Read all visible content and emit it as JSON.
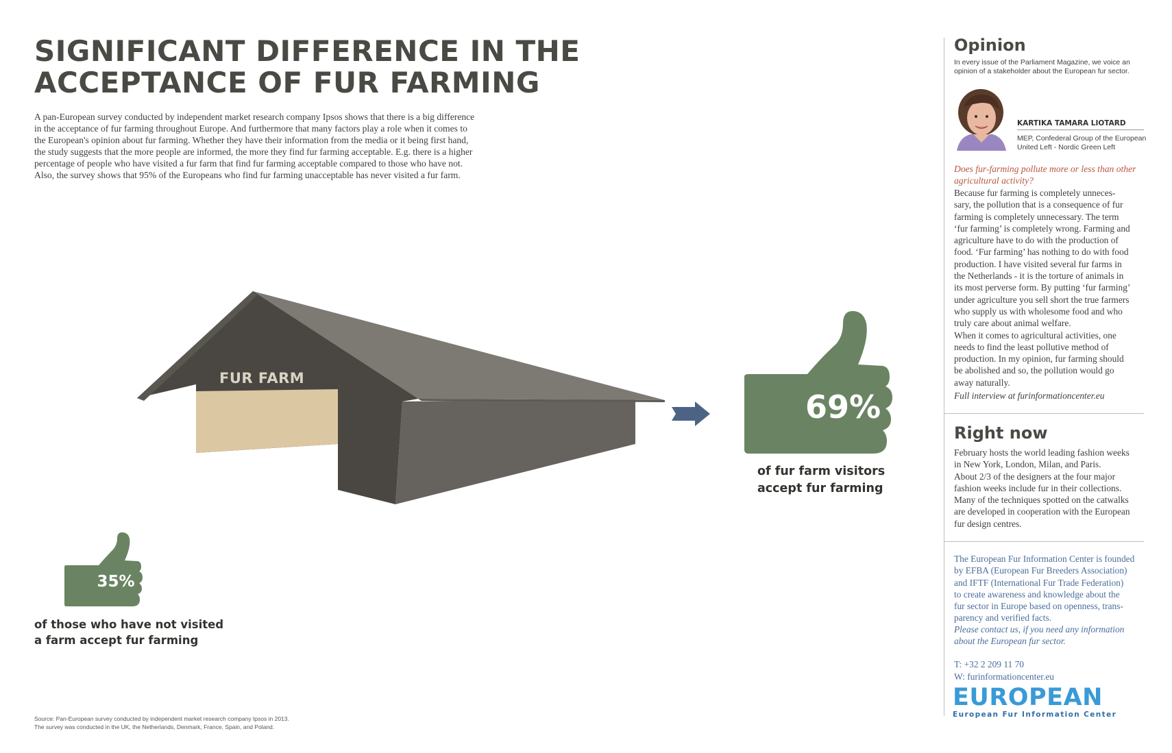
{
  "headline": {
    "line1": "SIGNIFICANT DIFFERENCE IN THE",
    "line2": "ACCEPTANCE OF FUR FARMING"
  },
  "intro": {
    "lines": [
      "A pan-European survey conducted by independent market research company Ipsos shows that there is a big difference",
      "in the acceptance of fur farming throughout Europe. And furthermore that many factors play a role when it comes to",
      "the European's opinion about fur farming. Whether they have their information from the media or it being first hand,",
      "the study suggests that the more people are informed, the more they find fur farming acceptable. E.g. there is a higher",
      "percentage of people who have visited a fur farm that find fur farming acceptable compared to those who have not.",
      "Also, the survey shows that 95% of the Europeans who find fur farming unacceptable has never visited a fur farm."
    ]
  },
  "barn": {
    "label": "FUR FARM"
  },
  "stat_visitors": {
    "percent_label": "69%",
    "value": 69,
    "caption": [
      "of fur farm visitors",
      "accept fur farming"
    ]
  },
  "stat_non_visitors": {
    "percent_label": "35%",
    "value": 35,
    "caption": [
      "of those who have not visited",
      "a farm accept fur farming"
    ]
  },
  "source": {
    "lines": [
      "Source: Pan-European survey conducted by independent market research company Ipsos in 2013.",
      "The survey was conducted in the UK, the Netherlands, Denmark, France, Spain, and Poland."
    ]
  },
  "opinion": {
    "title": "Opinion",
    "subtitle": [
      "In every issue of the Parliament Magazine, we voice an",
      "opinion of a stakeholder about the European fur sector."
    ],
    "person_name": "KARTIKA TAMARA LIOTARD",
    "person_role": [
      "MEP, Confederal Group of the European",
      "United Left - Nordic Green Left"
    ],
    "question": [
      "Does fur-farming pollute more or less than other",
      "agricultural activity?"
    ],
    "answer": [
      "Because fur farming is completely unneces-",
      "sary, the pollution that is a consequence of fur",
      "farming is completely unnecessary. The term",
      "‘fur farming’ is completely wrong. Farming and",
      "agriculture have to do with the production of",
      "food. ‘Fur farming’ has nothing to do with food",
      "production. I have visited several fur farms in",
      "the Netherlands - it is the torture of animals in",
      "its most perverse form. By putting ‘fur farming’",
      "under agriculture you sell short the true farmers",
      "who supply us with wholesome food and who",
      "truly care about animal welfare.",
      "When it comes to agricultural activities, one",
      "needs to find the least pollutive method of",
      "production. In my opinion, fur farming should",
      "be abolished and so, the pollution would go",
      "away naturally."
    ],
    "full_interview": "Full interview at furinformationcenter.eu"
  },
  "right_now": {
    "title": "Right now",
    "body": [
      "February hosts the world leading fashion weeks",
      "in New York, London, Milan, and Paris.",
      "About 2/3 of the designers at the four major",
      "fashion weeks include fur in their collections.",
      "Many of the techniques spotted on the catwalks",
      "are developed in cooperation with the European",
      "fur design centres."
    ]
  },
  "about": {
    "body": [
      "The European Fur Information Center is founded",
      "by EFBA (European Fur Breeders Association)",
      "and IFTF (International Fur Trade Federation)",
      "to create awareness and knowledge about the",
      "fur sector in Europe based on openness, trans-",
      "parency and verified facts."
    ],
    "contact_ask": [
      "Please contact us, if you need any information",
      "about the European fur sector."
    ],
    "phone": "T:   +32 2 209 11 70",
    "web": "W:  furinformationcenter.eu"
  },
  "logo": {
    "wordmark": "EUROPEAN",
    "tagline": "European Fur Information Center"
  },
  "colors": {
    "thumb": "#6a8463",
    "barn_dark": "#4a4641",
    "barn_roof": "#7d7a74",
    "barn_side": "#66625d",
    "barn_door": "#dbc7a2",
    "arrow": "#4d6385",
    "question": "#b9553f",
    "accent_blue": "#4a6d9c",
    "logo_blue": "#3a9ad6"
  }
}
